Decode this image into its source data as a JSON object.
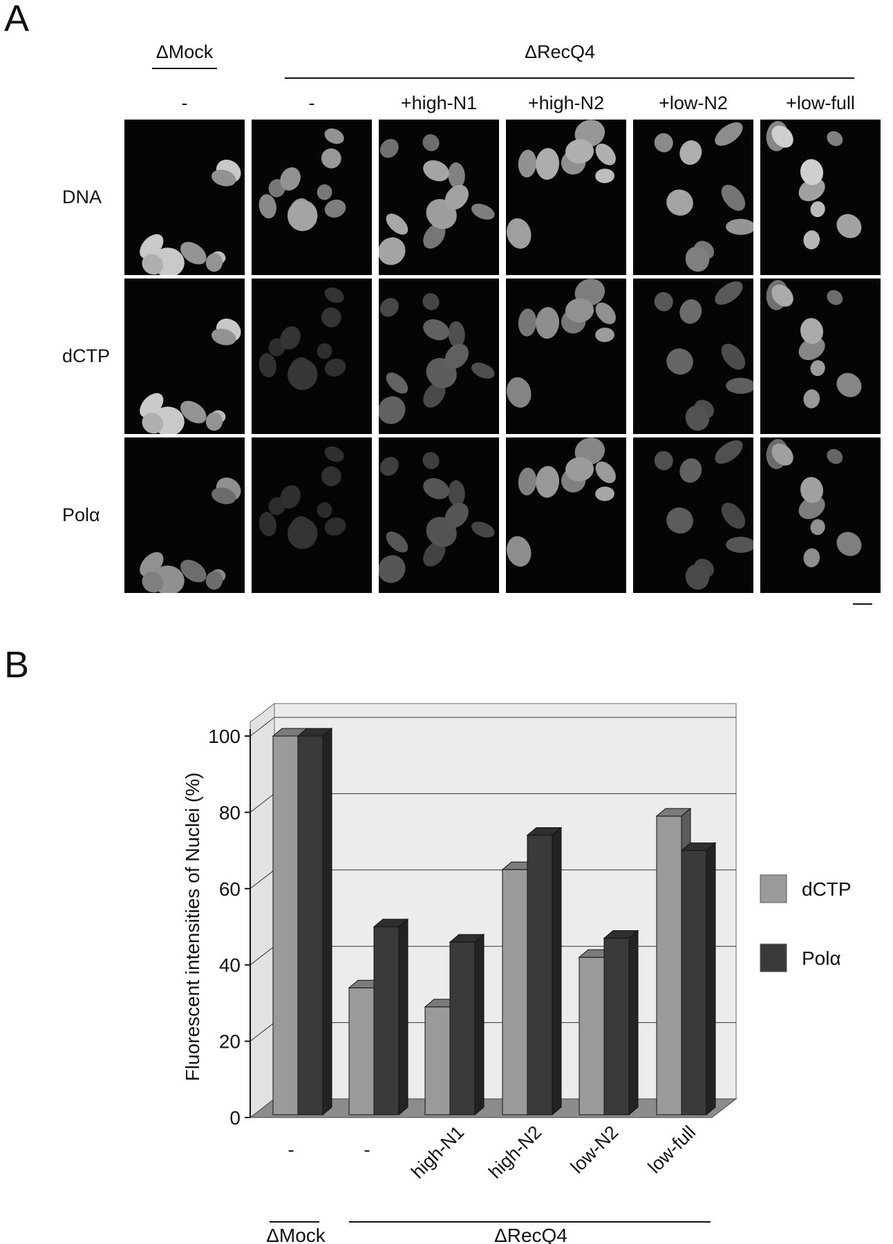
{
  "panelA": {
    "letter": "A",
    "mock_group": "ΔMock",
    "recq4_group": "ΔRecQ4",
    "columns": [
      "-",
      "-",
      "+high-N1",
      "+high-N2",
      "+low-N2",
      "+low-full"
    ],
    "rows": [
      "DNA",
      "dCTP",
      "Polα"
    ]
  },
  "panelB": {
    "letter": "B"
  },
  "chart_data": {
    "type": "bar",
    "title": "",
    "ylabel": "Fluorescent intensities of Nuclei (%)",
    "ylim": [
      0,
      100
    ],
    "yticks": [
      "0",
      "20",
      "40",
      "60",
      "80",
      "100"
    ],
    "categories": [
      "-",
      "-",
      "high-N1",
      "high-N2",
      "low-N2",
      "low-full"
    ],
    "group_labels": {
      "mock": "ΔMock",
      "recq4": "ΔRecQ4"
    },
    "series": [
      {
        "name": "dCTP",
        "values": [
          100,
          34,
          29,
          65,
          42,
          79
        ],
        "color": "#9a9a9a"
      },
      {
        "name": "Polα",
        "values": [
          100,
          50,
          46,
          74,
          47,
          70
        ],
        "color": "#3a3a3a"
      }
    ],
    "legend_position": "right",
    "grid": true
  }
}
